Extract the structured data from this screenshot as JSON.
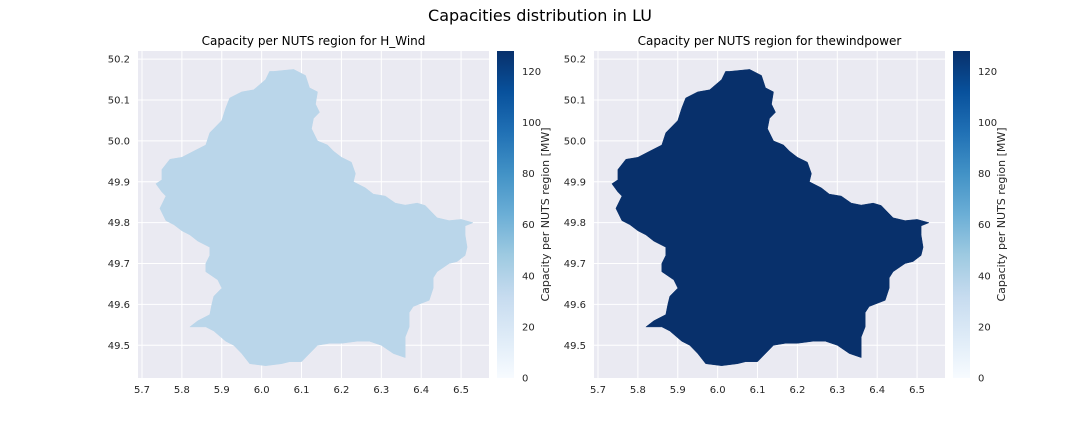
{
  "figure": {
    "title": "Capacities distribution in LU",
    "colors": {
      "axes_background": "#eaeaf2",
      "grid": "#ffffff",
      "text": "#262626"
    }
  },
  "chart_data": [
    {
      "type": "map",
      "title": "Capacity per NUTS region for H_Wind",
      "region": "LU",
      "values": [
        {
          "region": "LU",
          "capacity_mw": 28
        }
      ],
      "fill_color": "#bad6ea",
      "xlim": [
        5.69,
        6.57
      ],
      "ylim": [
        49.42,
        50.22
      ],
      "xticks": [
        5.7,
        5.8,
        5.9,
        6.0,
        6.1,
        6.2,
        6.3,
        6.4,
        6.5
      ],
      "xtick_labels": [
        "5.7",
        "5.8",
        "5.9",
        "6.0",
        "6.1",
        "6.2",
        "6.3",
        "6.4",
        "6.5"
      ],
      "yticks": [
        49.5,
        49.6,
        49.7,
        49.8,
        49.9,
        50.0,
        50.1,
        50.2
      ],
      "ytick_labels": [
        "49.5",
        "49.6",
        "49.7",
        "49.8",
        "49.9",
        "50.0",
        "50.1",
        "50.2"
      ],
      "grid": true,
      "colorbar": {
        "label": "Capacity per NUTS region [MW]",
        "colormap": "Blues",
        "range": [
          0,
          128
        ],
        "ticks": [
          0,
          20,
          40,
          60,
          80,
          100,
          120
        ],
        "tick_labels": [
          "0",
          "20",
          "40",
          "60",
          "80",
          "100",
          "120"
        ]
      }
    },
    {
      "type": "map",
      "title": "Capacity per NUTS region for thewindpower",
      "region": "LU",
      "values": [
        {
          "region": "LU",
          "capacity_mw": 128
        }
      ],
      "fill_color": "#08306b",
      "xlim": [
        5.69,
        6.57
      ],
      "ylim": [
        49.42,
        50.22
      ],
      "xticks": [
        5.7,
        5.8,
        5.9,
        6.0,
        6.1,
        6.2,
        6.3,
        6.4,
        6.5
      ],
      "xtick_labels": [
        "5.7",
        "5.8",
        "5.9",
        "6.0",
        "6.1",
        "6.2",
        "6.3",
        "6.4",
        "6.5"
      ],
      "yticks": [
        49.5,
        49.6,
        49.7,
        49.8,
        49.9,
        50.0,
        50.1,
        50.2
      ],
      "ytick_labels": [
        "49.5",
        "49.6",
        "49.7",
        "49.8",
        "49.9",
        "50.0",
        "50.1",
        "50.2"
      ],
      "grid": true,
      "colorbar": {
        "label": "Capacity per NUTS region [MW]",
        "colormap": "Blues",
        "range": [
          0,
          128
        ],
        "ticks": [
          0,
          20,
          40,
          60,
          80,
          100,
          120
        ],
        "tick_labels": [
          "0",
          "20",
          "40",
          "60",
          "80",
          "100",
          "120"
        ]
      }
    }
  ]
}
